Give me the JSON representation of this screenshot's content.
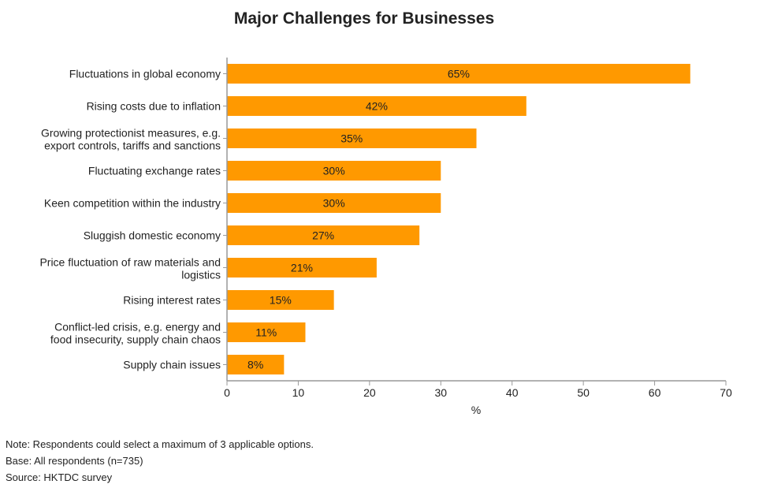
{
  "chart_data": {
    "type": "bar",
    "orientation": "horizontal",
    "title": "Major Challenges for Businesses",
    "xlabel": "%",
    "ylabel": "",
    "xlim": [
      0,
      70
    ],
    "xticks": [
      0,
      10,
      20,
      30,
      40,
      50,
      60,
      70
    ],
    "categories": [
      [
        "Fluctuations in global economy"
      ],
      [
        "Rising costs due to inflation"
      ],
      [
        "Growing protectionist measures, e.g.",
        "export controls, tariffs and sanctions"
      ],
      [
        "Fluctuating exchange rates"
      ],
      [
        "Keen competition within the industry"
      ],
      [
        "Sluggish domestic economy"
      ],
      [
        "Price fluctuation of raw materials and",
        "logistics"
      ],
      [
        "Rising interest rates"
      ],
      [
        "Conflict-led crisis, e.g. energy and",
        "food insecurity, supply chain chaos"
      ],
      [
        "Supply chain issues"
      ]
    ],
    "values": [
      65,
      42,
      35,
      30,
      30,
      27,
      21,
      15,
      11,
      8
    ],
    "data_labels": [
      "65%",
      "42%",
      "35%",
      "30%",
      "30%",
      "27%",
      "21%",
      "15%",
      "11%",
      "8%"
    ],
    "bar_color": "#FF9900",
    "grid": false
  },
  "notes": [
    "Note: Respondents could select a maximum of 3 applicable options.",
    "Base: All respondents (n=735)",
    "Source: HKTDC survey"
  ]
}
